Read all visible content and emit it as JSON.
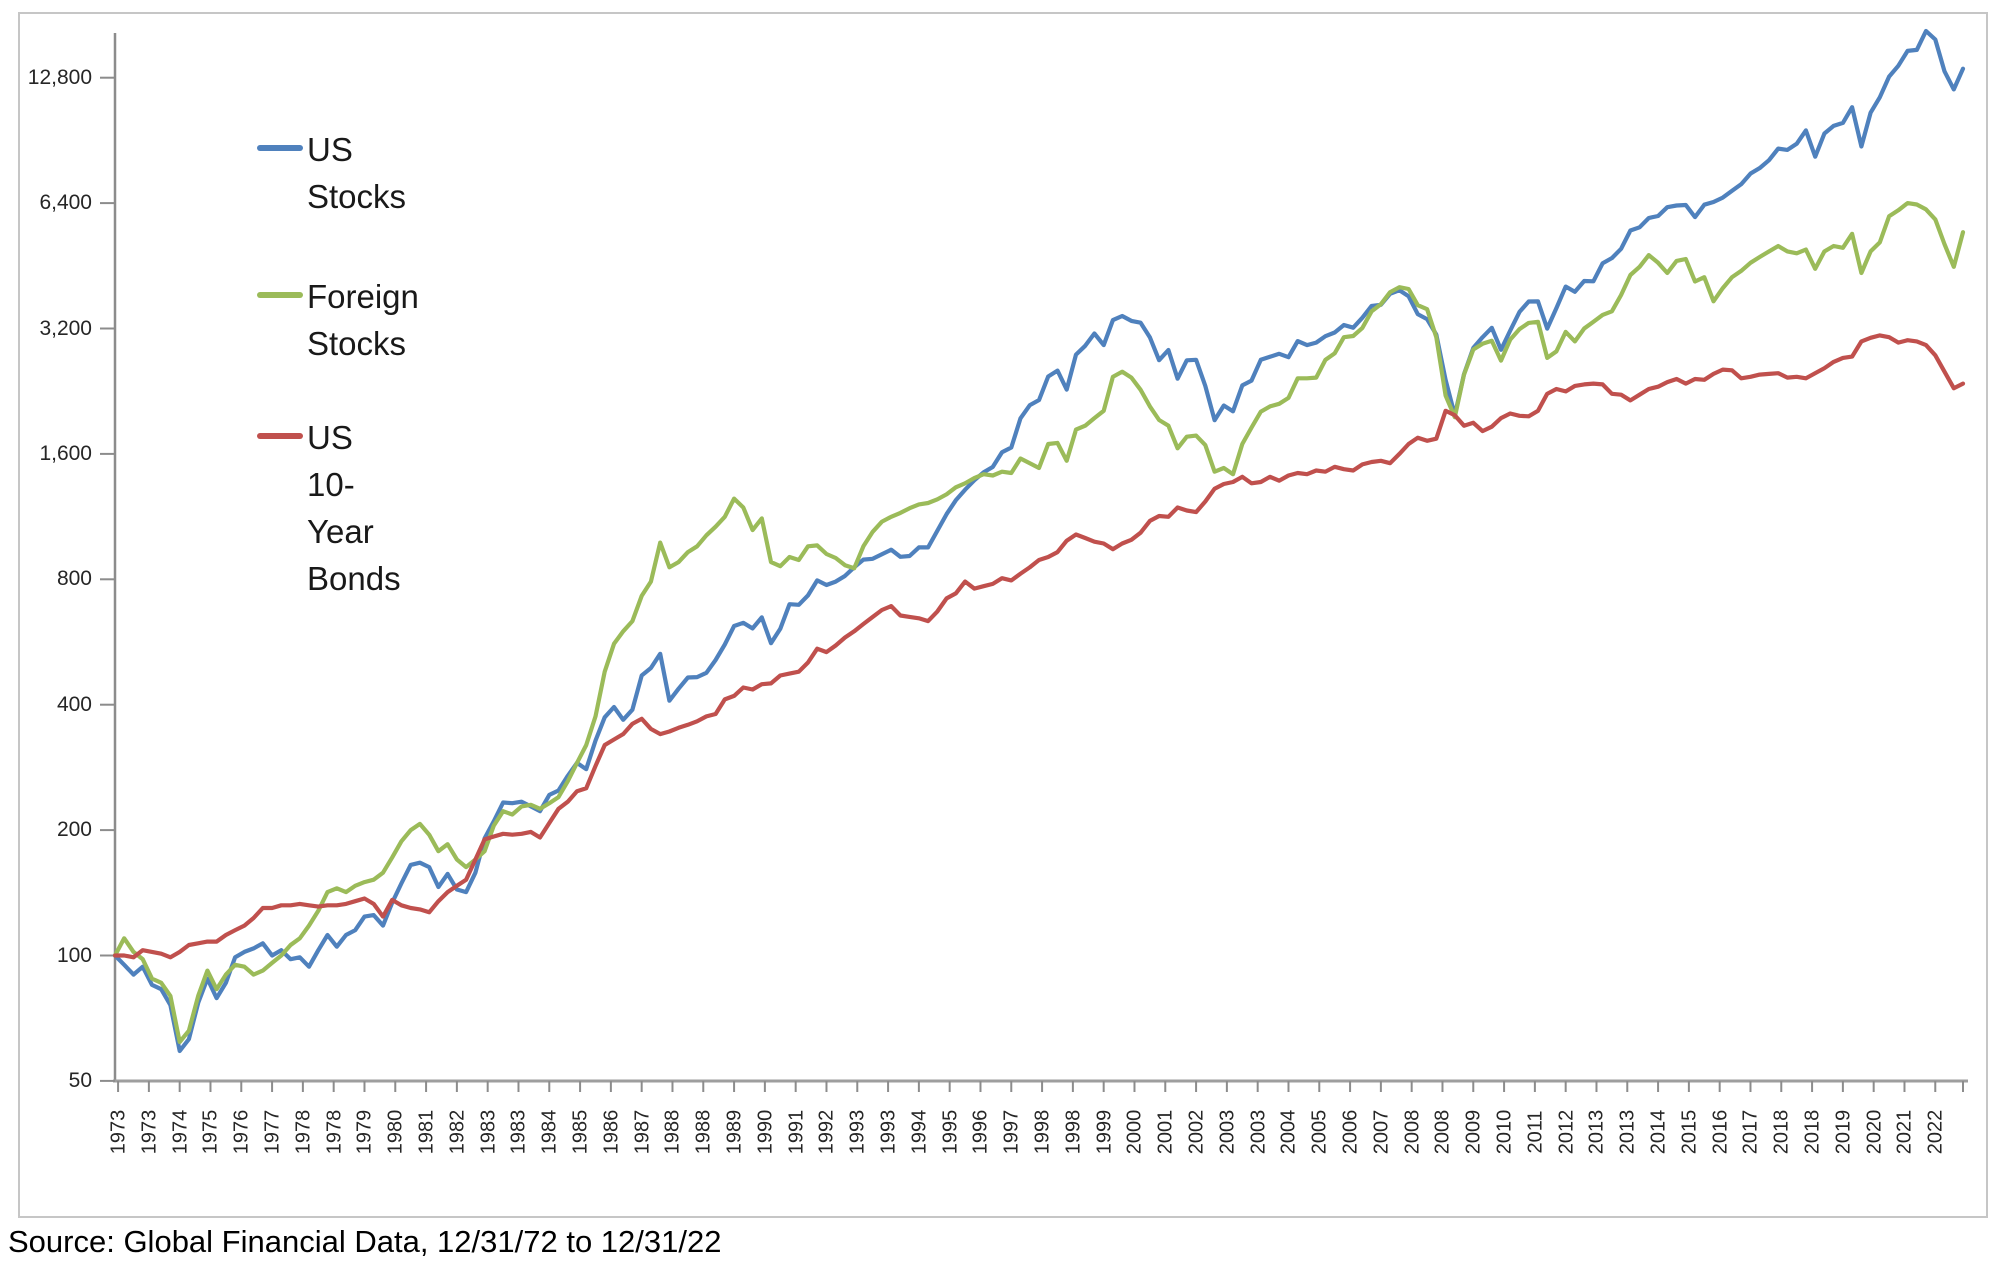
{
  "source_note": "Source: Global Financial Data, 12/31/72 to 12/31/22",
  "legend": {
    "items": [
      {
        "label": "US Stocks",
        "color": "#4F81BD"
      },
      {
        "label": "Foreign\nStocks",
        "color": "#9BBB59"
      },
      {
        "label": "US 10-Year\nBonds",
        "color": "#C0504D"
      }
    ]
  },
  "chart_data": {
    "type": "line",
    "title": "",
    "xlabel": "",
    "ylabel": "",
    "y_scale": "log2",
    "grid": false,
    "legend_position": "inside-top-left",
    "start_value": 100,
    "date_range": {
      "start": "12/31/72",
      "end": "12/31/22"
    },
    "points_frequency": "quarterly",
    "y_axis": {
      "tick_values": [
        50,
        100,
        200,
        400,
        800,
        1600,
        3200,
        6400,
        12800
      ],
      "tick_labels": [
        "50",
        "100",
        "200",
        "400",
        "800",
        "1,600",
        "3,200",
        "6,400",
        "12,800"
      ]
    },
    "x_axis": {
      "months_between_labels": 10,
      "first_label_month": 1,
      "total_months": 600,
      "tick_labels": [
        "1973",
        "1973",
        "1974",
        "1975",
        "1976",
        "1977",
        "1978",
        "1978",
        "1979",
        "1980",
        "1981",
        "1982",
        "1983",
        "1983",
        "1984",
        "1985",
        "1986",
        "1987",
        "1988",
        "1988",
        "1989",
        "1990",
        "1991",
        "1992",
        "1993",
        "1993",
        "1994",
        "1995",
        "1996",
        "1997",
        "1998",
        "1998",
        "1999",
        "2000",
        "2001",
        "2002",
        "2003",
        "2003",
        "2004",
        "2005",
        "2006",
        "2007",
        "2008",
        "2008",
        "2009",
        "2010",
        "2011",
        "2012",
        "2013",
        "2013",
        "2014",
        "2015",
        "2016",
        "2017",
        "2018",
        "2018",
        "2019",
        "2020",
        "2021",
        "2022"
      ]
    },
    "series": [
      {
        "name": "US Stocks",
        "color": "#4F81BD",
        "values": [
          100,
          95,
          90,
          94,
          85,
          83,
          76,
          59,
          63,
          77,
          88,
          79,
          86,
          99,
          102,
          104,
          107,
          100,
          103,
          98,
          99,
          94,
          103,
          112,
          105,
          112,
          115,
          124,
          125,
          118,
          134,
          149,
          165,
          167,
          163,
          146,
          157,
          144,
          142,
          158,
          191,
          210,
          233,
          232,
          234,
          228,
          222,
          243,
          249,
          270,
          290,
          280,
          328,
          373,
          395,
          368,
          389,
          470,
          490,
          530,
          409,
          437,
          465,
          466,
          477,
          512,
          558,
          618,
          629,
          610,
          648,
          562,
          609,
          697,
          695,
          732,
          795,
          775,
          790,
          815,
          855,
          892,
          896,
          919,
          942,
          906,
          910,
          954,
          954,
          1047,
          1147,
          1238,
          1313,
          1383,
          1445,
          1489,
          1615,
          1658,
          1948,
          2094,
          2154,
          2454,
          2535,
          2283,
          2770,
          2908,
          3113,
          2919,
          3352,
          3429,
          3338,
          3305,
          3047,
          2685,
          2842,
          2425,
          2684,
          2691,
          2330,
          1928,
          2091,
          2025,
          2337,
          2399,
          2691,
          2736,
          2783,
          2731,
          2984,
          2920,
          2960,
          3067,
          3130,
          3262,
          3215,
          3397,
          3625,
          3648,
          3877,
          3955,
          3824,
          3463,
          3369,
          3094,
          2409,
          1980,
          2486,
          2875,
          3048,
          3212,
          2845,
          3163,
          3508,
          3715,
          3718,
          3198,
          3582,
          4034,
          3919,
          4161,
          4155,
          4589,
          4722,
          4970,
          5501,
          5600,
          5894,
          5960,
          6255,
          6314,
          6332,
          5924,
          6342,
          6438,
          6596,
          6850,
          7103,
          7533,
          7766,
          8114,
          8652,
          8586,
          8881,
          9566,
          8271,
          9402,
          9805,
          9972,
          10876,
          8750,
          10547,
          11486,
          12877,
          13674,
          14843,
          14929,
          16573,
          15810,
          13264,
          12000,
          13450
        ]
      },
      {
        "name": "Foreign Stocks",
        "color": "#9BBB59",
        "values": [
          100,
          110,
          102,
          98,
          88,
          86,
          80,
          62,
          66,
          80,
          92,
          83,
          90,
          95,
          94,
          90,
          92,
          96,
          100,
          106,
          110,
          118,
          128,
          142,
          145,
          142,
          147,
          150,
          152,
          158,
          172,
          188,
          200,
          207,
          195,
          178,
          185,
          170,
          163,
          170,
          178,
          205,
          222,
          218,
          228,
          230,
          225,
          232,
          240,
          262,
          290,
          320,
          375,
          480,
          560,
          600,
          635,
          730,
          790,
          980,
          855,
          880,
          930,
          960,
          1020,
          1070,
          1130,
          1250,
          1190,
          1050,
          1120,
          880,
          860,
          905,
          890,
          960,
          965,
          920,
          900,
          865,
          850,
          960,
          1040,
          1100,
          1130,
          1155,
          1185,
          1210,
          1220,
          1245,
          1280,
          1330,
          1360,
          1400,
          1430,
          1420,
          1450,
          1440,
          1560,
          1520,
          1480,
          1690,
          1700,
          1540,
          1830,
          1870,
          1950,
          2030,
          2450,
          2520,
          2440,
          2280,
          2080,
          1930,
          1870,
          1650,
          1760,
          1770,
          1680,
          1450,
          1480,
          1430,
          1690,
          1850,
          2020,
          2080,
          2110,
          2180,
          2430,
          2430,
          2440,
          2690,
          2790,
          3050,
          3070,
          3210,
          3520,
          3660,
          3910,
          4020,
          3980,
          3640,
          3560,
          3050,
          2210,
          1960,
          2480,
          2850,
          2940,
          2990,
          2680,
          3010,
          3190,
          3300,
          3320,
          2720,
          2820,
          3140,
          2980,
          3200,
          3320,
          3450,
          3520,
          3850,
          4300,
          4500,
          4800,
          4600,
          4350,
          4650,
          4700,
          4150,
          4250,
          3720,
          4000,
          4250,
          4400,
          4600,
          4750,
          4900,
          5050,
          4900,
          4850,
          4950,
          4450,
          4900,
          5050,
          5000,
          5400,
          4350,
          4900,
          5150,
          5950,
          6150,
          6400,
          6350,
          6180,
          5850,
          5100,
          4500,
          5450
        ]
      },
      {
        "name": "US 10-Year Bonds",
        "color": "#C0504D",
        "values": [
          100,
          100,
          99,
          103,
          102,
          101,
          99,
          102,
          106,
          107,
          108,
          108,
          112,
          115,
          118,
          123,
          130,
          130,
          132,
          132,
          133,
          132,
          131,
          132,
          132,
          133,
          135,
          137,
          133,
          124,
          136,
          132,
          130,
          129,
          127,
          135,
          142,
          147,
          152,
          170,
          190,
          193,
          196,
          195,
          196,
          198,
          192,
          208,
          225,
          234,
          248,
          252,
          285,
          320,
          330,
          340,
          360,
          370,
          350,
          340,
          345,
          352,
          358,
          365,
          375,
          380,
          412,
          420,
          440,
          435,
          448,
          450,
          470,
          475,
          480,
          505,
          545,
          535,
          555,
          580,
          600,
          625,
          650,
          675,
          690,
          655,
          650,
          645,
          635,
          670,
          720,
          740,
          790,
          760,
          770,
          780,
          805,
          795,
          825,
          855,
          890,
          905,
          930,
          990,
          1025,
          1005,
          985,
          975,
          945,
          975,
          995,
          1035,
          1105,
          1135,
          1130,
          1190,
          1170,
          1160,
          1230,
          1320,
          1355,
          1370,
          1410,
          1360,
          1370,
          1410,
          1380,
          1420,
          1440,
          1430,
          1460,
          1450,
          1490,
          1470,
          1460,
          1510,
          1530,
          1540,
          1520,
          1600,
          1690,
          1750,
          1720,
          1740,
          2030,
          1980,
          1870,
          1900,
          1815,
          1860,
          1950,
          2000,
          1975,
          1970,
          2030,
          2230,
          2290,
          2260,
          2330,
          2350,
          2360,
          2350,
          2230,
          2220,
          2150,
          2220,
          2290,
          2320,
          2380,
          2420,
          2360,
          2420,
          2410,
          2490,
          2550,
          2540,
          2430,
          2450,
          2480,
          2490,
          2500,
          2440,
          2450,
          2430,
          2500,
          2570,
          2660,
          2720,
          2740,
          2980,
          3040,
          3080,
          3050,
          2960,
          3000,
          2980,
          2920,
          2760,
          2520,
          2300,
          2360
        ]
      }
    ]
  }
}
